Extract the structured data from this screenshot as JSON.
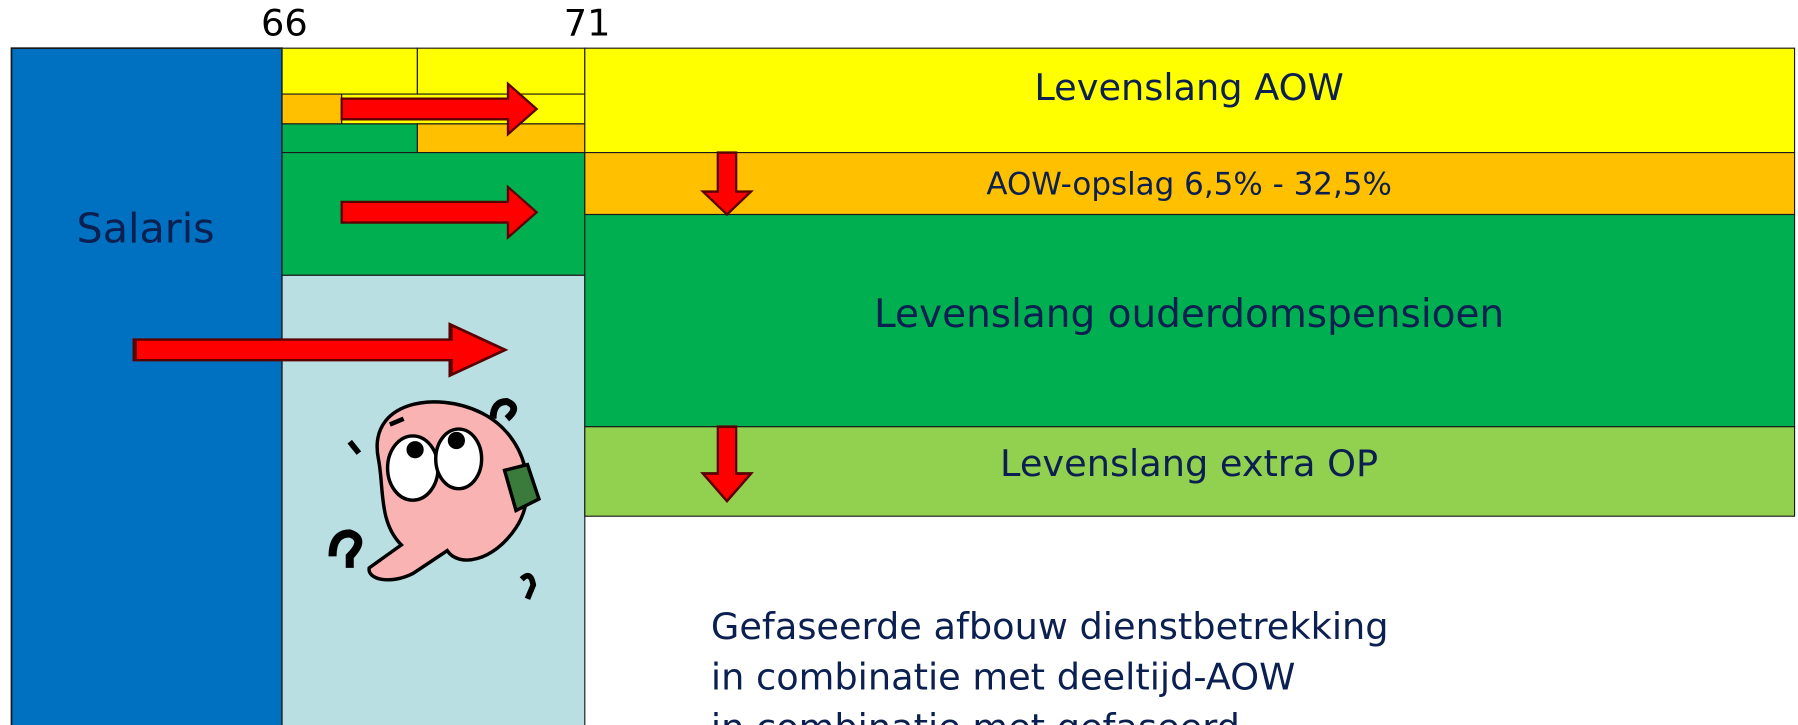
{
  "timeline": {
    "ages": [
      "66",
      "71"
    ]
  },
  "salary": {
    "label": "Salaris"
  },
  "bands": [
    {
      "label": "Levenslang AOW"
    },
    {
      "label": "AOW-opslag 6,5% - 32,5%"
    },
    {
      "label": "Levenslang ouderdomspensioen"
    },
    {
      "label": "Levenslang extra OP"
    }
  ],
  "note": {
    "lines": [
      "Gefaseerde afbouw dienstbetrekking",
      "in combinatie met deeltijd-AOW",
      "in combinatie met gefaseerd"
    ]
  }
}
